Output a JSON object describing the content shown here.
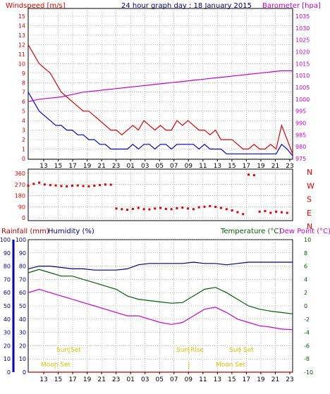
{
  "colors": {
    "wind": "#e00000",
    "gust": "#e00000",
    "avg": "#0000d0",
    "baro": "#cc00cc",
    "dir": "#e00000",
    "rain": "#c00000",
    "humidity": "#000080",
    "temp": "#006000",
    "dew": "#cc00cc",
    "sun": "#e0c000",
    "moon": "#e0c000",
    "grid": "#808080",
    "frame": "#000000"
  },
  "header": {
    "windspeed": "Windspeed [m/s]",
    "title": "24 hour graph day : 18 January 2015",
    "barometer": "Barometer [hpa]"
  },
  "time_ticks": [
    "13",
    "15",
    "17",
    "19",
    "21",
    "23",
    "01",
    "03",
    "05",
    "07",
    "09",
    "11",
    "13",
    "15",
    "17",
    "19",
    "21",
    "23"
  ],
  "wind_axis": {
    "ticks": [
      "15",
      "14",
      "13",
      "12",
      "11",
      "10",
      "9",
      "8",
      "7",
      "6",
      "5",
      "4",
      "3",
      "2",
      "1",
      "0"
    ]
  },
  "baro_axis": {
    "ticks": [
      "1035",
      "1030",
      "1025",
      "1020",
      "1015",
      "1010",
      "1005",
      "1000",
      "995",
      "990",
      "985",
      "980",
      "975"
    ]
  },
  "dir_axis": {
    "ticks": [
      "360",
      "270",
      "180",
      "90",
      "0"
    ],
    "compass": [
      "N",
      "W",
      "S",
      "E",
      "N"
    ]
  },
  "bottom_header": {
    "rainfall": "Rainfall (mm)",
    "humidity": "Humidity (%)",
    "temperature": "Temperature (°C)",
    "dewpoint": "Dew Point (°C)"
  },
  "rain_axis": {
    "ticks": [
      "100",
      "90",
      "80",
      "70",
      "60",
      "50",
      "40",
      "30",
      "20",
      "10",
      "0"
    ]
  },
  "hum_axis": {
    "ticks": [
      "100",
      "90",
      "80",
      "70",
      "60",
      "50",
      "40",
      "30",
      "20",
      "10",
      "0"
    ]
  },
  "temp_axis": {
    "ticks": [
      "10",
      "8",
      "6",
      "4",
      "2",
      "0",
      "-2",
      "-4",
      "-6",
      "-8",
      "-10"
    ]
  },
  "events": {
    "sunset1": "Sun Set",
    "sunrise": "Sun Rise",
    "sunset2": "Sun Set",
    "moonset": "Moon Set",
    "moonrise": "Moon Set"
  },
  "chart_data": [
    {
      "type": "line",
      "name": "wind-and-pressure",
      "x_unit": "hours since 12:00",
      "x_range": [
        0,
        24
      ],
      "series": [
        {
          "name": "Windspeed gust",
          "x": [
            0,
            0.5,
            1,
            1.5,
            2,
            2.5,
            3,
            3.5,
            4,
            4.5,
            5,
            5.5,
            6,
            6.5,
            7,
            7.5,
            8,
            8.5,
            9,
            9.5,
            10,
            10.5,
            11,
            11.5,
            12,
            12.5,
            13,
            13.5,
            14,
            14.5,
            15,
            15.5,
            16,
            16.5,
            17,
            17.5,
            18,
            18.5,
            19,
            19.5,
            20,
            20.5,
            21,
            21.5,
            22,
            22.5,
            23,
            23.5,
            24
          ],
          "values": [
            12,
            11,
            10,
            9.5,
            9,
            8,
            7,
            6.5,
            6,
            5.5,
            5,
            5,
            4.5,
            4,
            3.5,
            3,
            3,
            2.5,
            3,
            3.5,
            3,
            4,
            3.5,
            3,
            3.5,
            3,
            3,
            4,
            3.5,
            4,
            3.5,
            3,
            3,
            2.5,
            3,
            2,
            2,
            2,
            1.5,
            1,
            1,
            1.5,
            1,
            1,
            1.5,
            1,
            3.5,
            2,
            0.5
          ]
        },
        {
          "name": "Windspeed average",
          "x": [
            0,
            0.5,
            1,
            1.5,
            2,
            2.5,
            3,
            3.5,
            4,
            4.5,
            5,
            5.5,
            6,
            6.5,
            7,
            7.5,
            8,
            8.5,
            9,
            9.5,
            10,
            10.5,
            11,
            11.5,
            12,
            12.5,
            13,
            13.5,
            14,
            14.5,
            15,
            15.5,
            16,
            16.5,
            17,
            17.5,
            18,
            18.5,
            19,
            19.5,
            20,
            20.5,
            21,
            21.5,
            22,
            22.5,
            23,
            23.5,
            24
          ],
          "values": [
            7,
            6,
            5,
            4.5,
            4,
            3.5,
            3.5,
            3,
            3,
            2.5,
            2.5,
            2,
            2,
            1.5,
            1.5,
            1,
            1,
            1,
            1,
            1.5,
            1,
            1.5,
            1.5,
            1,
            1.5,
            1.5,
            1,
            1.5,
            1.5,
            1.5,
            1.5,
            1,
            1.5,
            1,
            1,
            1,
            0.5,
            0.5,
            0.5,
            0.5,
            0.5,
            0.5,
            0.5,
            0.5,
            0.5,
            0.5,
            1.5,
            1,
            0.3
          ]
        },
        {
          "name": "Barometer",
          "x": [
            0,
            1,
            2,
            3,
            4,
            5,
            6,
            7,
            8,
            9,
            10,
            11,
            12,
            13,
            14,
            15,
            16,
            17,
            18,
            19,
            20,
            21,
            22,
            23,
            24
          ],
          "values": [
            999,
            1000,
            1000.5,
            1001,
            1002,
            1003,
            1003.5,
            1004,
            1004.5,
            1005,
            1005.5,
            1006,
            1006.5,
            1007,
            1007.5,
            1008,
            1008.5,
            1009,
            1009.5,
            1010,
            1010.5,
            1011,
            1011.5,
            1012,
            1012
          ]
        }
      ],
      "y_range": [
        0,
        15
      ],
      "y2_range": [
        975,
        1035
      ]
    },
    {
      "type": "scatter",
      "name": "wind-direction",
      "x_range": [
        0,
        24
      ],
      "y_range": [
        0,
        360
      ],
      "series": [
        {
          "name": "Wind direction",
          "x": [
            0,
            0.5,
            1,
            1.5,
            2,
            2.5,
            3,
            3.5,
            4,
            4.5,
            5,
            5.5,
            6,
            6.5,
            7,
            7.5,
            8,
            8.5,
            9,
            9.5,
            10,
            10.5,
            11,
            11.5,
            12,
            12.5,
            13,
            13.5,
            14,
            14.5,
            15,
            15.5,
            16,
            16.5,
            17,
            17.5,
            18,
            18.5,
            19,
            19.5,
            20,
            20.5,
            21,
            21.5,
            22,
            22.5,
            23,
            23.5
          ],
          "values": [
            260,
            275,
            285,
            270,
            265,
            262,
            258,
            255,
            260,
            262,
            258,
            255,
            260,
            265,
            270,
            268,
            75,
            70,
            65,
            72,
            80,
            70,
            68,
            75,
            80,
            72,
            70,
            78,
            82,
            75,
            70,
            85,
            90,
            95,
            88,
            80,
            70,
            60,
            45,
            30,
            350,
            345,
            50,
            55,
            40,
            50,
            45,
            40
          ]
        }
      ]
    },
    {
      "type": "line",
      "name": "rain-humidity-temperature",
      "x_range": [
        0,
        24
      ],
      "series": [
        {
          "name": "Rainfall",
          "axis": "rain",
          "x": [
            0,
            24
          ],
          "values": [
            0,
            0
          ]
        },
        {
          "name": "Humidity",
          "axis": "humidity",
          "x": [
            0,
            1,
            2,
            3,
            4,
            5,
            6,
            7,
            8,
            9,
            10,
            11,
            12,
            13,
            14,
            15,
            16,
            17,
            18,
            19,
            20,
            21,
            22,
            23,
            24
          ],
          "values": [
            78,
            80,
            80,
            79,
            78,
            78,
            77,
            77,
            77,
            78,
            81,
            82,
            82,
            82,
            82,
            83,
            82,
            82,
            81,
            82,
            83,
            83,
            83,
            83,
            83
          ]
        },
        {
          "name": "Temperature",
          "axis": "temp",
          "x": [
            0,
            1,
            2,
            3,
            4,
            5,
            6,
            7,
            8,
            9,
            10,
            11,
            12,
            13,
            14,
            15,
            16,
            17,
            18,
            19,
            20,
            21,
            22,
            23,
            24
          ],
          "values": [
            5,
            5.5,
            5,
            4.5,
            4.5,
            4,
            3.5,
            3,
            2.5,
            1.5,
            1,
            0.8,
            0.6,
            0.4,
            0.5,
            1.5,
            2.5,
            2.8,
            2,
            1,
            0,
            -0.5,
            -0.8,
            -1,
            -1.2
          ]
        },
        {
          "name": "Dew Point",
          "axis": "temp",
          "x": [
            0,
            1,
            2,
            3,
            4,
            5,
            6,
            7,
            8,
            9,
            10,
            11,
            12,
            13,
            14,
            15,
            16,
            17,
            18,
            19,
            20,
            21,
            22,
            23,
            24
          ],
          "values": [
            2,
            2.5,
            2,
            1.5,
            1,
            0.5,
            0,
            -0.5,
            -1,
            -1.5,
            -1.5,
            -2,
            -2.5,
            -2.8,
            -2.5,
            -1.5,
            -0.5,
            -0.2,
            -1,
            -2,
            -2.5,
            -3,
            -3.2,
            -3.5,
            -3.6
          ]
        }
      ],
      "y_ranges": {
        "rain": [
          0,
          100
        ],
        "humidity": [
          0,
          100
        ],
        "temp": [
          -10,
          10
        ]
      },
      "events": [
        {
          "label": "Sun Set",
          "x": 4.7
        },
        {
          "label": "Sun Rise",
          "x": 20.8
        },
        {
          "label": "Sun Set",
          "x": 28.3
        },
        {
          "label": "Moon Set",
          "x": 4.6
        },
        {
          "label": "Moon Set",
          "x": 27.5
        }
      ]
    }
  ]
}
